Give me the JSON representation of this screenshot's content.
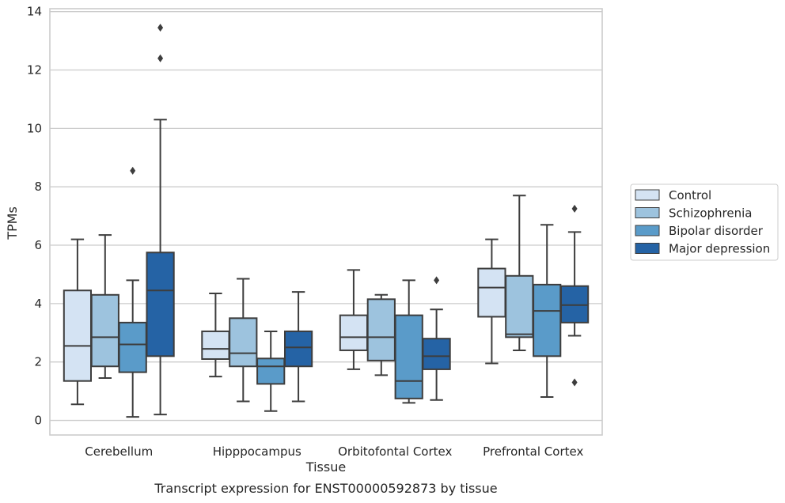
{
  "chart_data": {
    "type": "box",
    "title": "",
    "caption": "Transcript expression for ENST00000592873 by tissue",
    "xlabel": "Tissue",
    "ylabel": "TPMs",
    "ylim": [
      -0.5,
      14.1
    ],
    "yticks": [
      0,
      2,
      4,
      6,
      8,
      10,
      12,
      14
    ],
    "grid": "horizontal",
    "legend_position": "right",
    "categories": [
      "Cerebellum",
      "Hipppocampus",
      "Orbitofontal Cortex",
      "Prefrontal Cortex"
    ],
    "series": [
      {
        "name": "Control",
        "color": "#d4e3f3",
        "boxes": [
          {
            "whislo": 0.55,
            "q1": 1.35,
            "med": 2.55,
            "q3": 4.45,
            "whishi": 6.2,
            "fliers": []
          },
          {
            "whislo": 1.5,
            "q1": 2.1,
            "med": 2.45,
            "q3": 3.05,
            "whishi": 4.35,
            "fliers": []
          },
          {
            "whislo": 1.75,
            "q1": 2.4,
            "med": 2.85,
            "q3": 3.6,
            "whishi": 5.15,
            "fliers": []
          },
          {
            "whislo": 1.95,
            "q1": 3.55,
            "med": 4.55,
            "q3": 5.2,
            "whishi": 6.2,
            "fliers": []
          }
        ]
      },
      {
        "name": "Schizophrenia",
        "color": "#9dc3de",
        "boxes": [
          {
            "whislo": 1.45,
            "q1": 1.85,
            "med": 2.85,
            "q3": 4.3,
            "whishi": 6.35,
            "fliers": []
          },
          {
            "whislo": 0.65,
            "q1": 1.85,
            "med": 2.3,
            "q3": 3.5,
            "whishi": 4.85,
            "fliers": []
          },
          {
            "whislo": 1.55,
            "q1": 2.05,
            "med": 2.85,
            "q3": 4.15,
            "whishi": 4.3,
            "fliers": []
          },
          {
            "whislo": 2.4,
            "q1": 2.85,
            "med": 2.95,
            "q3": 4.95,
            "whishi": 7.7,
            "fliers": []
          }
        ]
      },
      {
        "name": "Bipolar disorder",
        "color": "#5a9bc9",
        "boxes": [
          {
            "whislo": 0.12,
            "q1": 1.65,
            "med": 2.6,
            "q3": 3.35,
            "whishi": 4.8,
            "fliers": [
              8.55
            ]
          },
          {
            "whislo": 0.32,
            "q1": 1.25,
            "med": 1.85,
            "q3": 2.12,
            "whishi": 3.05,
            "fliers": []
          },
          {
            "whislo": 0.6,
            "q1": 0.75,
            "med": 1.35,
            "q3": 3.6,
            "whishi": 4.8,
            "fliers": []
          },
          {
            "whislo": 0.8,
            "q1": 2.2,
            "med": 3.75,
            "q3": 4.65,
            "whishi": 6.7,
            "fliers": []
          }
        ]
      },
      {
        "name": "Major depression",
        "color": "#2563a5",
        "boxes": [
          {
            "whislo": 0.2,
            "q1": 2.2,
            "med": 4.45,
            "q3": 5.75,
            "whishi": 10.3,
            "fliers": [
              12.4,
              13.45
            ]
          },
          {
            "whislo": 0.65,
            "q1": 1.85,
            "med": 2.5,
            "q3": 3.05,
            "whishi": 4.4,
            "fliers": []
          },
          {
            "whislo": 0.7,
            "q1": 1.75,
            "med": 2.2,
            "q3": 2.8,
            "whishi": 3.8,
            "fliers": [
              4.8
            ]
          },
          {
            "whislo": 2.9,
            "q1": 3.35,
            "med": 3.95,
            "q3": 4.6,
            "whishi": 6.45,
            "fliers": [
              7.25,
              1.3
            ]
          }
        ]
      }
    ]
  }
}
